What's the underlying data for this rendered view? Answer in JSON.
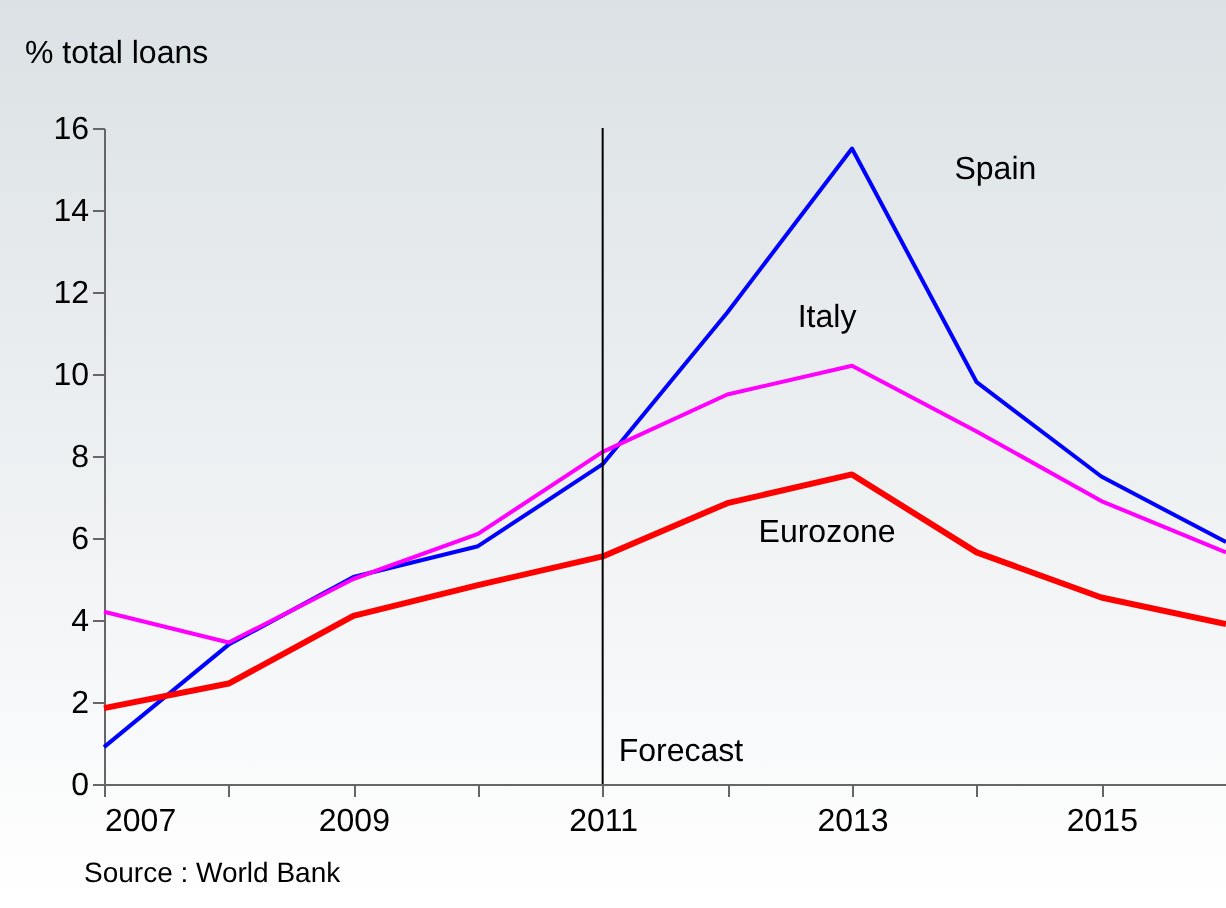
{
  "chart_data": {
    "type": "line",
    "ylabel": "% total loans",
    "x": [
      2007,
      2008,
      2009,
      2010,
      2011,
      2012,
      2013,
      2014,
      2015,
      2016
    ],
    "series": [
      {
        "name": "Spain",
        "color": "#0000ff",
        "values": [
          0.9,
          3.4,
          5.05,
          5.8,
          7.8,
          11.5,
          15.5,
          9.8,
          7.5,
          5.9
        ]
      },
      {
        "name": "Italy",
        "color": "#ff00ff",
        "values": [
          4.2,
          3.45,
          5.0,
          6.1,
          8.1,
          9.5,
          10.2,
          8.6,
          6.9,
          5.65
        ]
      },
      {
        "name": "Eurozone",
        "color": "#ff0000",
        "values": [
          1.85,
          2.45,
          4.1,
          4.85,
          5.55,
          6.85,
          7.55,
          5.65,
          4.55,
          3.9
        ]
      }
    ],
    "xlim": [
      2007,
      2016
    ],
    "xticks": [
      2007,
      {
        "value": 2008,
        "label": null
      },
      2009,
      {
        "value": 2010,
        "label": null
      },
      2011,
      {
        "value": 2012,
        "label": null
      },
      2013,
      {
        "value": 2014,
        "label": null
      },
      2015,
      {
        "value": 2016,
        "label": null
      }
    ],
    "ylim": [
      0,
      16
    ],
    "yticks": [
      0,
      2,
      4,
      6,
      8,
      10,
      12,
      14,
      16
    ],
    "ref_lines": [
      {
        "axis": "x",
        "value": 2011,
        "label": "Forecast",
        "color": "#000000"
      }
    ],
    "annotations": [
      "Source : World Bank"
    ],
    "grid": false,
    "legend": false,
    "marker": "none",
    "line_style": "solid"
  }
}
